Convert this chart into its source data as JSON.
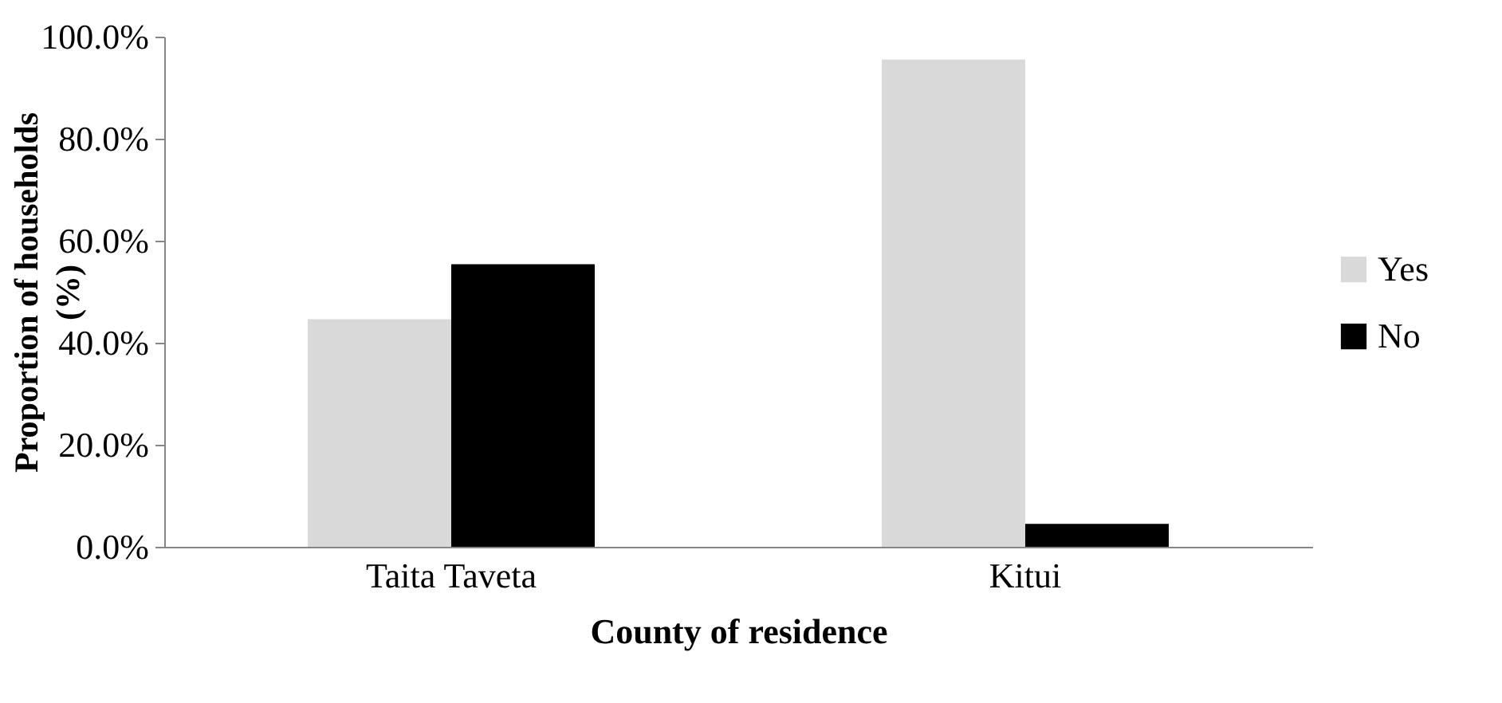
{
  "chart_data": {
    "type": "bar",
    "xlabel": "County of residence",
    "ylabel": "Proportion of households (%)",
    "categories": [
      "Taita Taveta",
      "Kitui"
    ],
    "series": [
      {
        "name": "Yes",
        "color": "#d9d9d9",
        "values": [
          44.6,
          95.5
        ]
      },
      {
        "name": "No",
        "color": "#000000",
        "values": [
          55.4,
          4.5
        ]
      }
    ],
    "ylim": [
      0,
      100
    ],
    "yticks": [
      {
        "value": 0,
        "label": "0.0%"
      },
      {
        "value": 20,
        "label": "20.0%"
      },
      {
        "value": 40,
        "label": "40.0%"
      },
      {
        "value": 60,
        "label": "60.0%"
      },
      {
        "value": 80,
        "label": "80.0%"
      },
      {
        "value": 100,
        "label": "100.0%"
      }
    ],
    "grid": false,
    "legend": "right"
  }
}
